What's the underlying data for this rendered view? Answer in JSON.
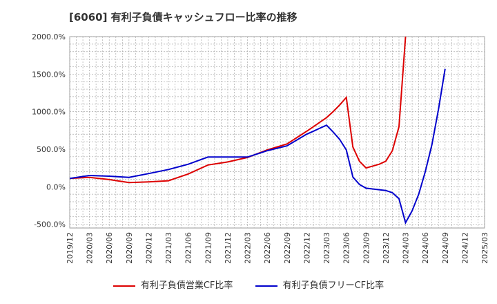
{
  "chart_data": {
    "type": "line",
    "title": "[6060]  有利子負債キャッシュフロー比率の推移",
    "xlabel": "",
    "ylabel": "",
    "ylim": [
      -550,
      2000
    ],
    "y_ticks": [
      -500,
      0,
      500,
      1000,
      1500,
      2000
    ],
    "y_tick_labels": [
      "-500.0%",
      "0.0%",
      "500.0%",
      "1000.0%",
      "1500.0%",
      "2000.0%"
    ],
    "x_tick_labels": [
      "2019/12",
      "2020/03",
      "2020/06",
      "2020/09",
      "2020/12",
      "2021/03",
      "2021/06",
      "2021/09",
      "2021/12",
      "2022/03",
      "2022/06",
      "2022/09",
      "2022/12",
      "2023/03",
      "2023/06",
      "2023/09",
      "2023/12",
      "2024/03",
      "2024/06",
      "2024/09",
      "2024/12",
      "2025/03"
    ],
    "grid": true,
    "legend_position": "bottom",
    "series": [
      {
        "name": "有利子負債営業CF比率",
        "color": "#dd0000",
        "x": [
          "2019/12",
          "2020/03",
          "2020/06",
          "2020/09",
          "2020/12",
          "2021/03",
          "2021/06",
          "2021/09",
          "2021/12",
          "2022/03",
          "2022/06",
          "2022/09",
          "2022/12",
          "2023/01",
          "2023/02",
          "2023/03",
          "2023/04",
          "2023/05",
          "2023/06",
          "2023/07",
          "2023/08",
          "2023/09",
          "2023/10",
          "2023/11",
          "2023/12",
          "2024/01",
          "2024/02",
          "2024/03"
        ],
        "values": [
          110,
          125,
          95,
          55,
          65,
          80,
          170,
          290,
          330,
          390,
          490,
          570,
          740,
          800,
          860,
          920,
          1000,
          1090,
          1190,
          530,
          340,
          250,
          275,
          300,
          340,
          480,
          800,
          2000
        ]
      },
      {
        "name": "有利子負債フリーCF比率",
        "color": "#0000cc",
        "x": [
          "2019/12",
          "2020/03",
          "2020/06",
          "2020/09",
          "2020/12",
          "2021/03",
          "2021/06",
          "2021/09",
          "2021/12",
          "2022/03",
          "2022/06",
          "2022/09",
          "2022/12",
          "2023/01",
          "2023/02",
          "2023/03",
          "2023/04",
          "2023/05",
          "2023/06",
          "2023/07",
          "2023/08",
          "2023/09",
          "2023/10",
          "2023/11",
          "2023/12",
          "2024/01",
          "2024/02",
          "2024/03",
          "2024/04",
          "2024/05",
          "2024/06",
          "2024/07",
          "2024/08",
          "2024/09"
        ],
        "values": [
          110,
          150,
          140,
          125,
          175,
          230,
          300,
          395,
          395,
          395,
          480,
          545,
          700,
          740,
          780,
          820,
          730,
          630,
          490,
          130,
          30,
          -20,
          -30,
          -40,
          -50,
          -80,
          -160,
          -480,
          -320,
          -100,
          200,
          560,
          1030,
          1570
        ]
      }
    ]
  }
}
